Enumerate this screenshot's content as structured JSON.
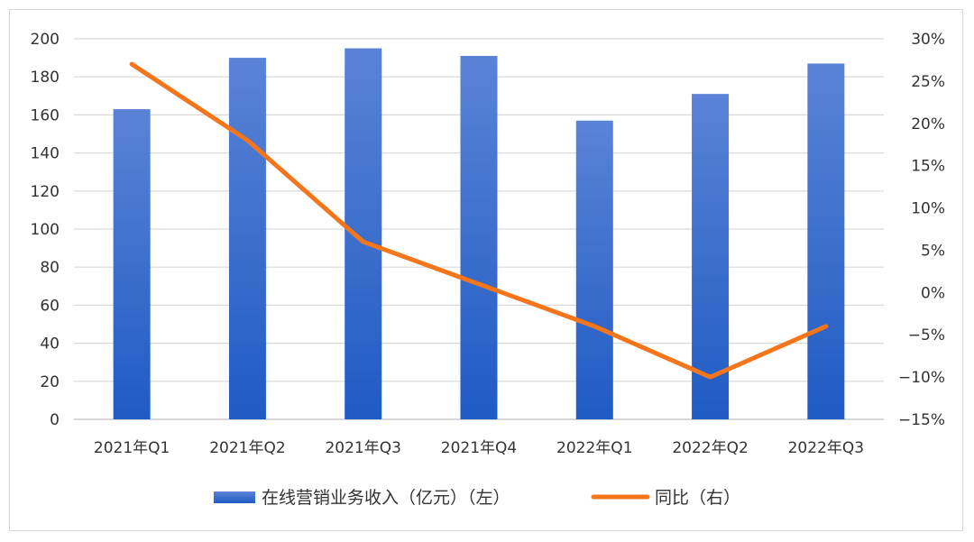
{
  "chart_data": {
    "type": "bar",
    "title": "",
    "categories": [
      "2021年Q1",
      "2021年Q2",
      "2021年Q3",
      "2021年Q4",
      "2022年Q1",
      "2022年Q2",
      "2022年Q3"
    ],
    "series": [
      {
        "name": "在线营销业务收入（亿元）（左）",
        "type": "bar",
        "axis": "left",
        "values": [
          163,
          190,
          195,
          191,
          157,
          171,
          187
        ]
      },
      {
        "name": "同比（右）",
        "type": "line",
        "axis": "right",
        "values": [
          27,
          18,
          6,
          1,
          -4,
          -10,
          -4
        ]
      }
    ],
    "left_axis": {
      "ylim": [
        0,
        200
      ],
      "ticks": [
        "0",
        "20",
        "40",
        "60",
        "80",
        "100",
        "120",
        "140",
        "160",
        "180",
        "200"
      ]
    },
    "right_axis": {
      "ylim": [
        -15,
        30
      ],
      "ticks": [
        "-15%",
        "-10%",
        "-5%",
        "0%",
        "5%",
        "10%",
        "15%",
        "20%",
        "25%",
        "30%"
      ]
    },
    "grid": true,
    "legend_position": "bottom",
    "colors": {
      "bar_top": "#5a83d6",
      "bar_bottom": "#1f5bc4",
      "line": "#f5761a",
      "grid": "#d9d9d9",
      "axis": "#bfbfbf"
    }
  }
}
